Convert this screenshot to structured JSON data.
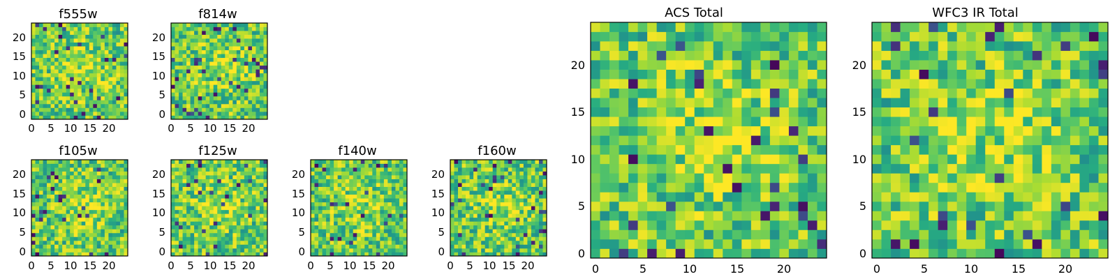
{
  "chart_data": [
    {
      "type": "heatmap",
      "title": "f555w",
      "grid_size": 25,
      "colormap": "viridis",
      "xlim": [
        0,
        24
      ],
      "ylim": [
        0,
        24
      ],
      "xticks": [
        0,
        5,
        10,
        15,
        20
      ],
      "yticks": [
        0,
        5,
        10,
        15,
        20
      ],
      "seed": 11
    },
    {
      "type": "heatmap",
      "title": "f814w",
      "grid_size": 25,
      "colormap": "viridis",
      "xlim": [
        0,
        24
      ],
      "ylim": [
        0,
        24
      ],
      "xticks": [
        0,
        5,
        10,
        15,
        20
      ],
      "yticks": [
        0,
        5,
        10,
        15,
        20
      ],
      "seed": 23
    },
    {
      "type": "heatmap",
      "title": "f105w",
      "grid_size": 25,
      "colormap": "viridis",
      "xlim": [
        0,
        24
      ],
      "ylim": [
        0,
        24
      ],
      "xticks": [
        0,
        5,
        10,
        15,
        20
      ],
      "yticks": [
        0,
        5,
        10,
        15,
        20
      ],
      "seed": 37
    },
    {
      "type": "heatmap",
      "title": "f125w",
      "grid_size": 25,
      "colormap": "viridis",
      "xlim": [
        0,
        24
      ],
      "ylim": [
        0,
        24
      ],
      "xticks": [
        0,
        5,
        10,
        15,
        20
      ],
      "yticks": [
        0,
        5,
        10,
        15,
        20
      ],
      "seed": 41
    },
    {
      "type": "heatmap",
      "title": "f140w",
      "grid_size": 25,
      "colormap": "viridis",
      "xlim": [
        0,
        24
      ],
      "ylim": [
        0,
        24
      ],
      "xticks": [
        0,
        5,
        10,
        15,
        20
      ],
      "yticks": [
        0,
        5,
        10,
        15,
        20
      ],
      "seed": 53
    },
    {
      "type": "heatmap",
      "title": "f160w",
      "grid_size": 25,
      "colormap": "viridis",
      "xlim": [
        0,
        24
      ],
      "ylim": [
        0,
        24
      ],
      "xticks": [
        0,
        5,
        10,
        15,
        20
      ],
      "yticks": [
        0,
        5,
        10,
        15,
        20
      ],
      "seed": 67
    },
    {
      "type": "heatmap",
      "title": "ACS Total",
      "grid_size": 25,
      "colormap": "viridis",
      "xlim": [
        0,
        24
      ],
      "ylim": [
        0,
        24
      ],
      "xticks": [
        0,
        5,
        10,
        15,
        20
      ],
      "yticks": [
        0,
        5,
        10,
        15,
        20
      ],
      "seed": 79
    },
    {
      "type": "heatmap",
      "title": "WFC3 IR Total",
      "grid_size": 25,
      "colormap": "viridis",
      "xlim": [
        0,
        24
      ],
      "ylim": [
        0,
        24
      ],
      "xticks": [
        0,
        5,
        10,
        15,
        20
      ],
      "yticks": [
        0,
        5,
        10,
        15,
        20
      ],
      "seed": 97
    }
  ]
}
